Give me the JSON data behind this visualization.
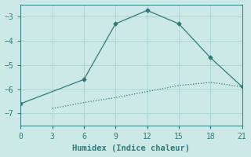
{
  "line1_x": [
    0,
    6,
    9,
    12,
    15,
    18,
    21
  ],
  "line1_y": [
    -6.6,
    -5.6,
    -3.3,
    -2.75,
    -3.3,
    -4.7,
    -5.9
  ],
  "line2_x": [
    3,
    6,
    9,
    12,
    15,
    18,
    21
  ],
  "line2_y": [
    -6.8,
    -6.55,
    -6.35,
    -6.1,
    -5.85,
    -5.72,
    -5.9
  ],
  "color": "#2e7d7a",
  "xlabel": "Humidex (Indice chaleur)",
  "xlim": [
    0,
    21
  ],
  "ylim": [
    -7.5,
    -2.5
  ],
  "yticks": [
    -7,
    -6,
    -5,
    -4,
    -3
  ],
  "xticks": [
    0,
    3,
    6,
    9,
    12,
    15,
    18,
    21
  ],
  "bg_color": "#cce9e7",
  "grid_color": "#aad4d2",
  "marker": "D",
  "markersize": 2.5,
  "linewidth": 0.9,
  "xlabel_fontsize": 7.5,
  "tick_fontsize": 7,
  "font_family": "monospace"
}
